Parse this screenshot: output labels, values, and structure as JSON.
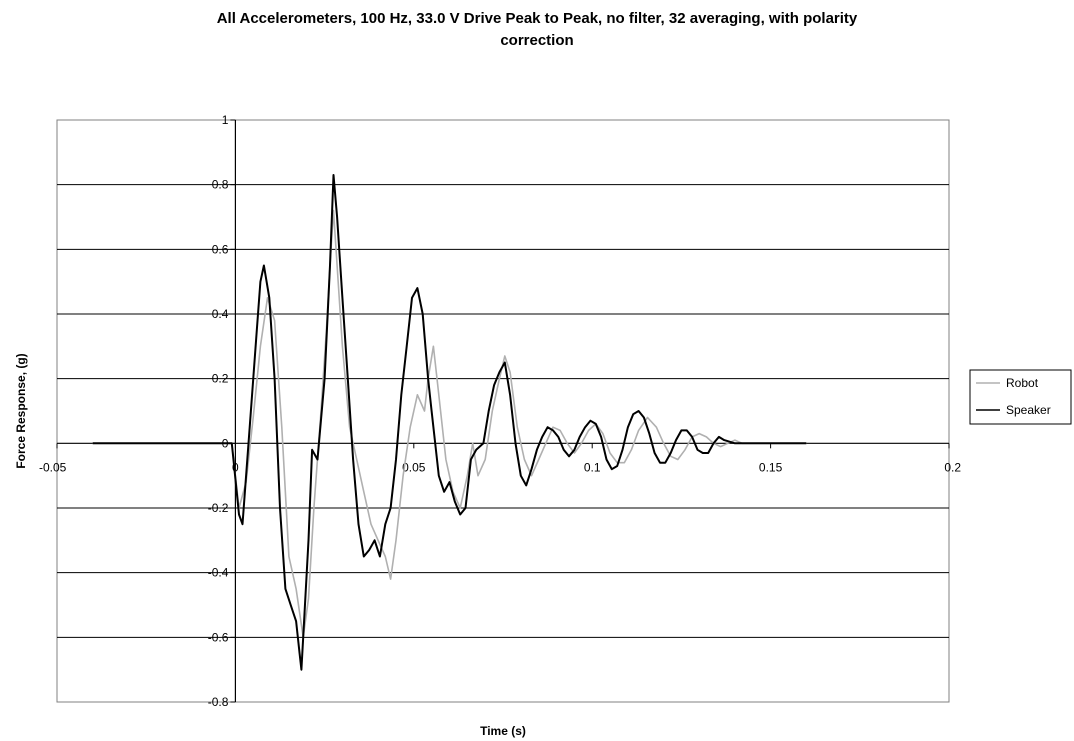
{
  "chart_data": {
    "type": "line",
    "title_line1": "All Accelerometers, 100 Hz, 33.0 V Drive Peak to Peak, no filter, 32 averaging, with polarity",
    "title_line2": "correction",
    "xlabel": "Time (s)",
    "ylabel": "Force Response, (g)",
    "xlim": [
      -0.05,
      0.2
    ],
    "ylim": [
      -0.8,
      1
    ],
    "xticks": [
      -0.05,
      0,
      0.05,
      0.1,
      0.15,
      0.2
    ],
    "xtick_labels": [
      "-0.05",
      "0",
      "0.05",
      "0.1",
      "0.15",
      "0.2"
    ],
    "yticks": [
      1,
      0.8,
      0.6,
      0.4,
      0.2,
      0,
      -0.2,
      -0.4,
      -0.6,
      -0.8
    ],
    "ytick_labels": [
      "1",
      "0.8",
      "0.6",
      "0.4",
      "0.2",
      "0",
      "-0.2",
      "-0.4",
      "-0.6",
      "-0.8"
    ],
    "grid": "horizontal",
    "legend_position": "right",
    "series": [
      {
        "name": "Robot",
        "color": "#b0b0b0",
        "points": [
          [
            -0.04,
            0
          ],
          [
            -0.02,
            0
          ],
          [
            -0.005,
            0
          ],
          [
            -0.001,
            0
          ],
          [
            0.001,
            -0.2
          ],
          [
            0.003,
            -0.12
          ],
          [
            0.005,
            0.08
          ],
          [
            0.007,
            0.3
          ],
          [
            0.009,
            0.45
          ],
          [
            0.011,
            0.38
          ],
          [
            0.013,
            0.05
          ],
          [
            0.015,
            -0.35
          ],
          [
            0.017,
            -0.45
          ],
          [
            0.019,
            -0.6
          ],
          [
            0.0205,
            -0.48
          ],
          [
            0.022,
            -0.2
          ],
          [
            0.024,
            0.1
          ],
          [
            0.0255,
            0.35
          ],
          [
            0.0265,
            0.55
          ],
          [
            0.0275,
            0.72
          ],
          [
            0.0285,
            0.55
          ],
          [
            0.03,
            0.3
          ],
          [
            0.032,
            0.05
          ],
          [
            0.034,
            -0.05
          ],
          [
            0.036,
            -0.15
          ],
          [
            0.038,
            -0.25
          ],
          [
            0.04,
            -0.3
          ],
          [
            0.042,
            -0.35
          ],
          [
            0.0435,
            -0.42
          ],
          [
            0.045,
            -0.3
          ],
          [
            0.047,
            -0.1
          ],
          [
            0.049,
            0.05
          ],
          [
            0.051,
            0.15
          ],
          [
            0.053,
            0.1
          ],
          [
            0.054,
            0.2
          ],
          [
            0.0555,
            0.3
          ],
          [
            0.057,
            0.15
          ],
          [
            0.059,
            -0.05
          ],
          [
            0.061,
            -0.15
          ],
          [
            0.063,
            -0.2
          ],
          [
            0.065,
            -0.1
          ],
          [
            0.0665,
            0
          ],
          [
            0.068,
            -0.1
          ],
          [
            0.07,
            -0.05
          ],
          [
            0.072,
            0.1
          ],
          [
            0.074,
            0.2
          ],
          [
            0.0755,
            0.27
          ],
          [
            0.077,
            0.22
          ],
          [
            0.079,
            0.05
          ],
          [
            0.081,
            -0.05
          ],
          [
            0.083,
            -0.1
          ],
          [
            0.085,
            -0.05
          ],
          [
            0.087,
            0
          ],
          [
            0.089,
            0.05
          ],
          [
            0.091,
            0.04
          ],
          [
            0.093,
            0
          ],
          [
            0.095,
            -0.03
          ],
          [
            0.097,
            0
          ],
          [
            0.099,
            0.04
          ],
          [
            0.101,
            0.06
          ],
          [
            0.103,
            0.03
          ],
          [
            0.105,
            -0.03
          ],
          [
            0.107,
            -0.06
          ],
          [
            0.109,
            -0.06
          ],
          [
            0.111,
            -0.02
          ],
          [
            0.113,
            0.04
          ],
          [
            0.1155,
            0.08
          ],
          [
            0.118,
            0.05
          ],
          [
            0.12,
            0
          ],
          [
            0.122,
            -0.04
          ],
          [
            0.124,
            -0.05
          ],
          [
            0.126,
            -0.02
          ],
          [
            0.128,
            0.02
          ],
          [
            0.13,
            0.03
          ],
          [
            0.132,
            0.02
          ],
          [
            0.134,
            0
          ],
          [
            0.136,
            -0.01
          ],
          [
            0.138,
            0
          ],
          [
            0.14,
            0.01
          ],
          [
            0.142,
            0
          ],
          [
            0.145,
            0
          ],
          [
            0.15,
            0
          ],
          [
            0.155,
            0
          ],
          [
            0.16,
            0
          ]
        ]
      },
      {
        "name": "Speaker",
        "color": "#000000",
        "points": [
          [
            -0.04,
            0
          ],
          [
            -0.02,
            0
          ],
          [
            -0.005,
            0
          ],
          [
            -0.001,
            0
          ],
          [
            0.001,
            -0.22
          ],
          [
            0.002,
            -0.25
          ],
          [
            0.004,
            0.05
          ],
          [
            0.006,
            0.35
          ],
          [
            0.007,
            0.5
          ],
          [
            0.008,
            0.55
          ],
          [
            0.0095,
            0.45
          ],
          [
            0.011,
            0.2
          ],
          [
            0.0125,
            -0.2
          ],
          [
            0.014,
            -0.45
          ],
          [
            0.0155,
            -0.5
          ],
          [
            0.017,
            -0.55
          ],
          [
            0.018,
            -0.65
          ],
          [
            0.0185,
            -0.7
          ],
          [
            0.019,
            -0.6
          ],
          [
            0.0205,
            -0.3
          ],
          [
            0.0215,
            -0.02
          ],
          [
            0.023,
            -0.05
          ],
          [
            0.025,
            0.2
          ],
          [
            0.0265,
            0.55
          ],
          [
            0.0275,
            0.83
          ],
          [
            0.0285,
            0.7
          ],
          [
            0.03,
            0.45
          ],
          [
            0.0315,
            0.2
          ],
          [
            0.033,
            -0.05
          ],
          [
            0.0345,
            -0.25
          ],
          [
            0.036,
            -0.35
          ],
          [
            0.0375,
            -0.33
          ],
          [
            0.039,
            -0.3
          ],
          [
            0.0405,
            -0.35
          ],
          [
            0.042,
            -0.25
          ],
          [
            0.0435,
            -0.2
          ],
          [
            0.045,
            -0.05
          ],
          [
            0.0465,
            0.15
          ],
          [
            0.048,
            0.3
          ],
          [
            0.0495,
            0.45
          ],
          [
            0.051,
            0.48
          ],
          [
            0.0525,
            0.4
          ],
          [
            0.054,
            0.2
          ],
          [
            0.055,
            0.1
          ],
          [
            0.057,
            -0.1
          ],
          [
            0.0585,
            -0.15
          ],
          [
            0.06,
            -0.12
          ],
          [
            0.0615,
            -0.18
          ],
          [
            0.063,
            -0.22
          ],
          [
            0.0645,
            -0.2
          ],
          [
            0.066,
            -0.05
          ],
          [
            0.0675,
            -0.02
          ],
          [
            0.0695,
            0
          ],
          [
            0.071,
            0.1
          ],
          [
            0.0725,
            0.18
          ],
          [
            0.074,
            0.22
          ],
          [
            0.0755,
            0.25
          ],
          [
            0.077,
            0.15
          ],
          [
            0.0785,
            0
          ],
          [
            0.08,
            -0.1
          ],
          [
            0.0815,
            -0.13
          ],
          [
            0.083,
            -0.08
          ],
          [
            0.0845,
            -0.02
          ],
          [
            0.086,
            0.02
          ],
          [
            0.0875,
            0.05
          ],
          [
            0.089,
            0.04
          ],
          [
            0.0905,
            0.02
          ],
          [
            0.092,
            -0.02
          ],
          [
            0.0935,
            -0.04
          ],
          [
            0.095,
            -0.02
          ],
          [
            0.0965,
            0.02
          ],
          [
            0.098,
            0.05
          ],
          [
            0.0995,
            0.07
          ],
          [
            0.101,
            0.06
          ],
          [
            0.1025,
            0.02
          ],
          [
            0.104,
            -0.05
          ],
          [
            0.1055,
            -0.08
          ],
          [
            0.107,
            -0.07
          ],
          [
            0.1085,
            -0.02
          ],
          [
            0.11,
            0.05
          ],
          [
            0.1115,
            0.09
          ],
          [
            0.113,
            0.1
          ],
          [
            0.1145,
            0.08
          ],
          [
            0.116,
            0.03
          ],
          [
            0.1175,
            -0.03
          ],
          [
            0.119,
            -0.06
          ],
          [
            0.1205,
            -0.06
          ],
          [
            0.122,
            -0.03
          ],
          [
            0.1235,
            0.01
          ],
          [
            0.125,
            0.04
          ],
          [
            0.1265,
            0.04
          ],
          [
            0.128,
            0.02
          ],
          [
            0.1295,
            -0.02
          ],
          [
            0.131,
            -0.03
          ],
          [
            0.1325,
            -0.03
          ],
          [
            0.134,
            0
          ],
          [
            0.1355,
            0.02
          ],
          [
            0.137,
            0.01
          ],
          [
            0.14,
            0
          ],
          [
            0.145,
            0
          ],
          [
            0.15,
            0
          ],
          [
            0.155,
            0
          ],
          [
            0.16,
            0
          ]
        ]
      }
    ]
  }
}
